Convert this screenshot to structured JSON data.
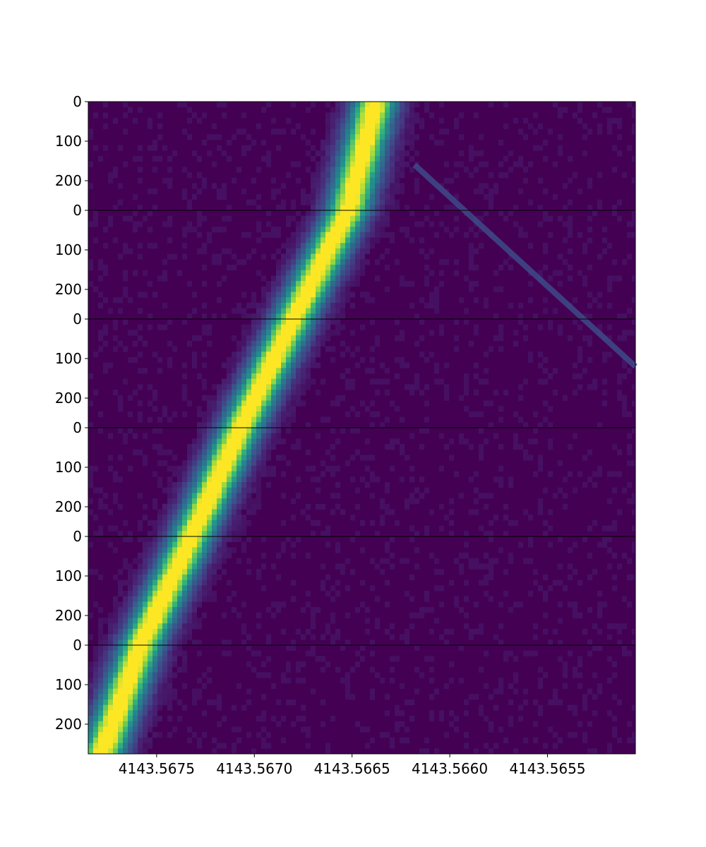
{
  "chart_data": {
    "type": "heatmap",
    "colormap": "viridis",
    "panel_count": 6,
    "x_axis": {
      "min": 4143.56785,
      "max": 4143.56505,
      "reversed": true,
      "ticks": [
        4143.5675,
        4143.567,
        4143.5665,
        4143.566,
        4143.5655
      ],
      "tick_labels": [
        "4143.5675",
        "4143.5670",
        "4143.5665",
        "4143.5660",
        "4143.5655"
      ]
    },
    "y_axis": {
      "per_panel_range": [
        0,
        275
      ],
      "ticks": [
        0,
        100,
        200
      ],
      "tick_labels": [
        "0",
        "100",
        "200"
      ]
    },
    "main_band": {
      "description_values": "Bright diagonal band; centre wavelength as a function of panel index and row",
      "panel_centers": [
        {
          "panel": 0,
          "top": 4143.56638,
          "bottom": 4143.56652
        },
        {
          "panel": 1,
          "top": 4143.56652,
          "bottom": 4143.5668
        },
        {
          "panel": 2,
          "top": 4143.5668,
          "bottom": 4143.56707
        },
        {
          "panel": 3,
          "top": 4143.56707,
          "bottom": 4143.56732
        },
        {
          "panel": 4,
          "top": 4143.56732,
          "bottom": 4143.56758
        },
        {
          "panel": 5,
          "top": 4143.56758,
          "bottom": 4143.56778
        }
      ]
    },
    "faint_line": {
      "start": {
        "panel": 0,
        "row": 160,
        "x": 4143.56618
      },
      "end": {
        "panel": 2,
        "row": 120,
        "x": 4143.56505
      }
    },
    "colors": {
      "background": "#440154",
      "grid_separator": "#000000"
    }
  }
}
